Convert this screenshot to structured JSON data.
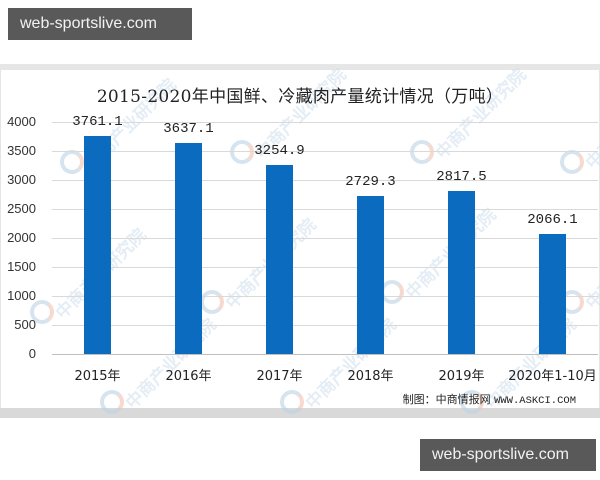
{
  "watermark_site": "web-sportslive.com",
  "chart_watermark": "中商产业研究院",
  "source_label": "制图：中商情报网",
  "source_url": "WWW.ASKCI.COM",
  "colors": {
    "bar": "#0a6bbf",
    "grid": "#d9d9d9",
    "badge": "#595959"
  },
  "chart_data": {
    "type": "bar",
    "title": "2015-2020年中国鲜、冷藏肉产量统计情况（万吨）",
    "xlabel": "",
    "ylabel": "",
    "ylim": [
      0,
      4000
    ],
    "yticks": [
      "4000",
      "3500",
      "3000",
      "2500",
      "2000",
      "1500",
      "1000",
      "500",
      "0"
    ],
    "grid": true,
    "legend": "none",
    "categories": [
      "2015年",
      "2016年",
      "2017年",
      "2018年",
      "2019年",
      "2020年1-10月"
    ],
    "values": [
      3761.1,
      3637.1,
      3254.9,
      2729.3,
      2817.5,
      2066.1
    ],
    "labels": [
      "3761.1",
      "3637.1",
      "3254.9",
      "2729.3",
      "2817.5",
      "2066.1"
    ]
  }
}
